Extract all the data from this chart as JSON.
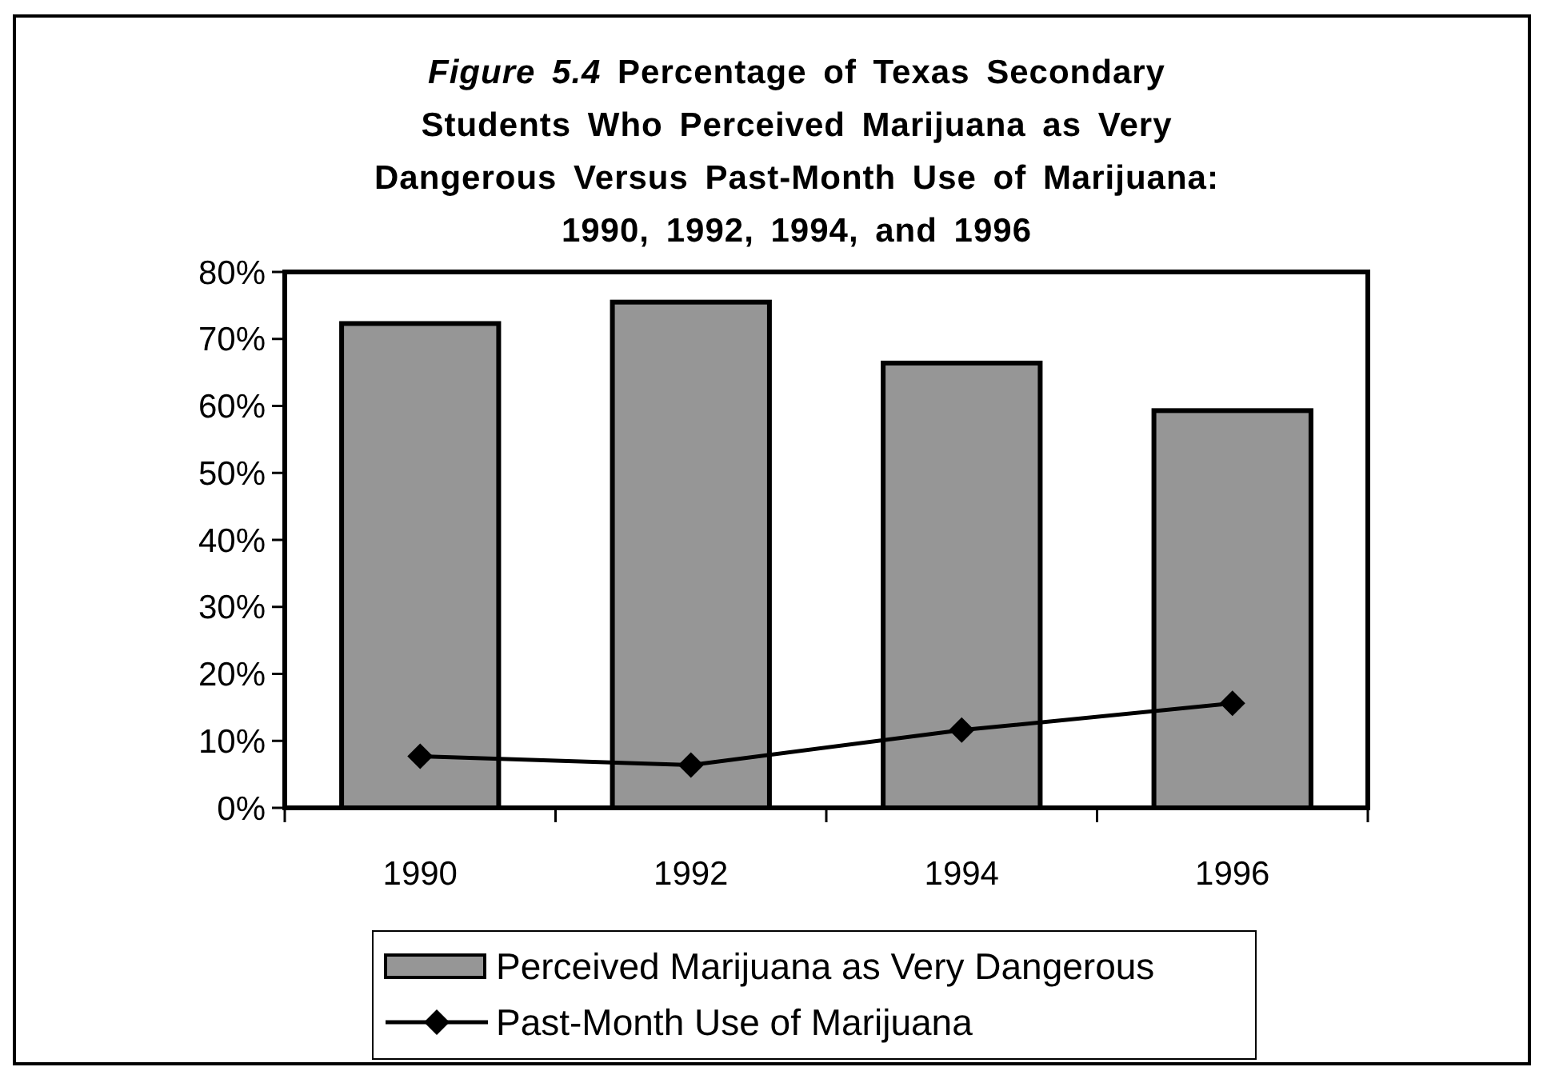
{
  "chart_data": {
    "type": "bar",
    "title": "Figure 5.4 Percentage of Texas Secondary Students Who Perceived Marijuana as Very Dangerous Versus Past-Month Use of Marijuana: 1990, 1992, 1994, and 1996",
    "categories": [
      "1990",
      "1992",
      "1994",
      "1996"
    ],
    "series": [
      {
        "name": "Perceived Marijuana as Very Dangerous",
        "color": "#969696",
        "values": [
          72.3,
          75.5,
          66.4,
          59.3
        ]
      },
      {
        "name": "Past-Month Use of Marijuana",
        "type": "line",
        "color": "#000000",
        "marker": "diamond",
        "values": [
          7.7,
          6.4,
          11.6,
          15.6
        ]
      }
    ],
    "ylim": [
      0,
      80
    ],
    "yticks": [
      {
        "value": 0,
        "label": "0%"
      },
      {
        "value": 10,
        "label": "10%"
      },
      {
        "value": 20,
        "label": "20%"
      },
      {
        "value": 30,
        "label": "30%"
      },
      {
        "value": 40,
        "label": "40%"
      },
      {
        "value": 50,
        "label": "50%"
      },
      {
        "value": 60,
        "label": "60%"
      },
      {
        "value": 70,
        "label": "70%"
      },
      {
        "value": 80,
        "label": "80%"
      }
    ],
    "grid": false,
    "legend": "bottom"
  }
}
